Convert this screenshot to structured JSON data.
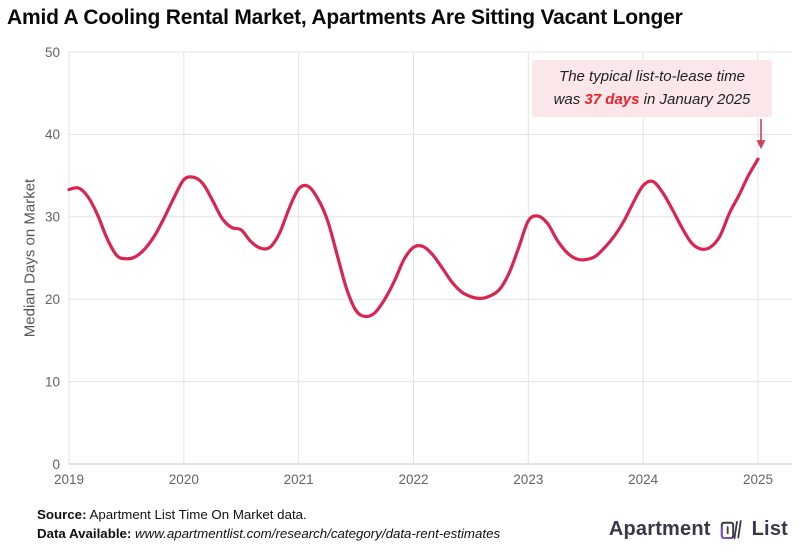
{
  "title": "Amid A Cooling Rental Market, Apartments Are Sitting Vacant Longer",
  "annotation": {
    "line1": "The typical list-to-lease time",
    "line2_prefix": "was ",
    "line2_highlight": "37 days",
    "line2_suffix": " in January 2025"
  },
  "chart_data": {
    "type": "line",
    "title": "",
    "xlabel": "",
    "ylabel": "Median Days on Market",
    "x_tick_labels": [
      "2019",
      "2020",
      "2021",
      "2022",
      "2023",
      "2024",
      "2025"
    ],
    "y_ticks": [
      0,
      10,
      20,
      30,
      40,
      50
    ],
    "ylim": [
      0,
      50
    ],
    "grid": true,
    "legend": false,
    "series": [
      {
        "name": "Median days on market",
        "start_month": "2019-01",
        "end_month": "2025-01",
        "frequency": "monthly",
        "values": [
          33.3,
          33.5,
          32.4,
          30.2,
          27.3,
          25.3,
          24.9,
          25.2,
          26.2,
          27.8,
          30.0,
          32.4,
          34.5,
          34.8,
          34.0,
          32.0,
          29.8,
          28.7,
          28.4,
          27.0,
          26.2,
          26.3,
          28.0,
          31.0,
          33.4,
          33.7,
          32.2,
          29.6,
          25.5,
          21.3,
          18.6,
          17.9,
          18.4,
          20.0,
          22.2,
          24.8,
          26.3,
          26.4,
          25.4,
          23.8,
          22.1,
          20.9,
          20.3,
          20.1,
          20.4,
          21.2,
          23.2,
          26.3,
          29.5,
          30.1,
          29.2,
          27.2,
          25.7,
          24.9,
          24.8,
          25.2,
          26.3,
          27.7,
          29.5,
          31.8,
          33.8,
          34.3,
          33.0,
          31.0,
          28.8,
          26.9,
          26.1,
          26.3,
          27.6,
          30.4,
          32.6,
          35.0,
          37.0
        ]
      }
    ],
    "end_value": 37,
    "line_color": "#d92550",
    "grid_color": "#e3e3e3",
    "axis_line_color": "#c6c6c6",
    "tick_label_color": "#636363",
    "ylabel_color": "#565656"
  },
  "footer": {
    "source_label": "Source:",
    "source_text": " Apartment List Time On Market data.",
    "data_label": "Data Available:",
    "data_text": " www.apartmentlist.com/research/category/data-rent-estimates"
  },
  "logo": {
    "word1": "Apartment",
    "word2": "List",
    "icon": "apartment-list-logo",
    "text_color": "#3a3847",
    "accent_color": "#7d4bc7"
  },
  "colors": {
    "background": "#ffffff",
    "title": "#0a0a0a",
    "annotation_bg": "#fbe7e9",
    "annotation_text": "#222222",
    "highlight_red": "#e8252c",
    "arrow_red": "#cc4257"
  }
}
